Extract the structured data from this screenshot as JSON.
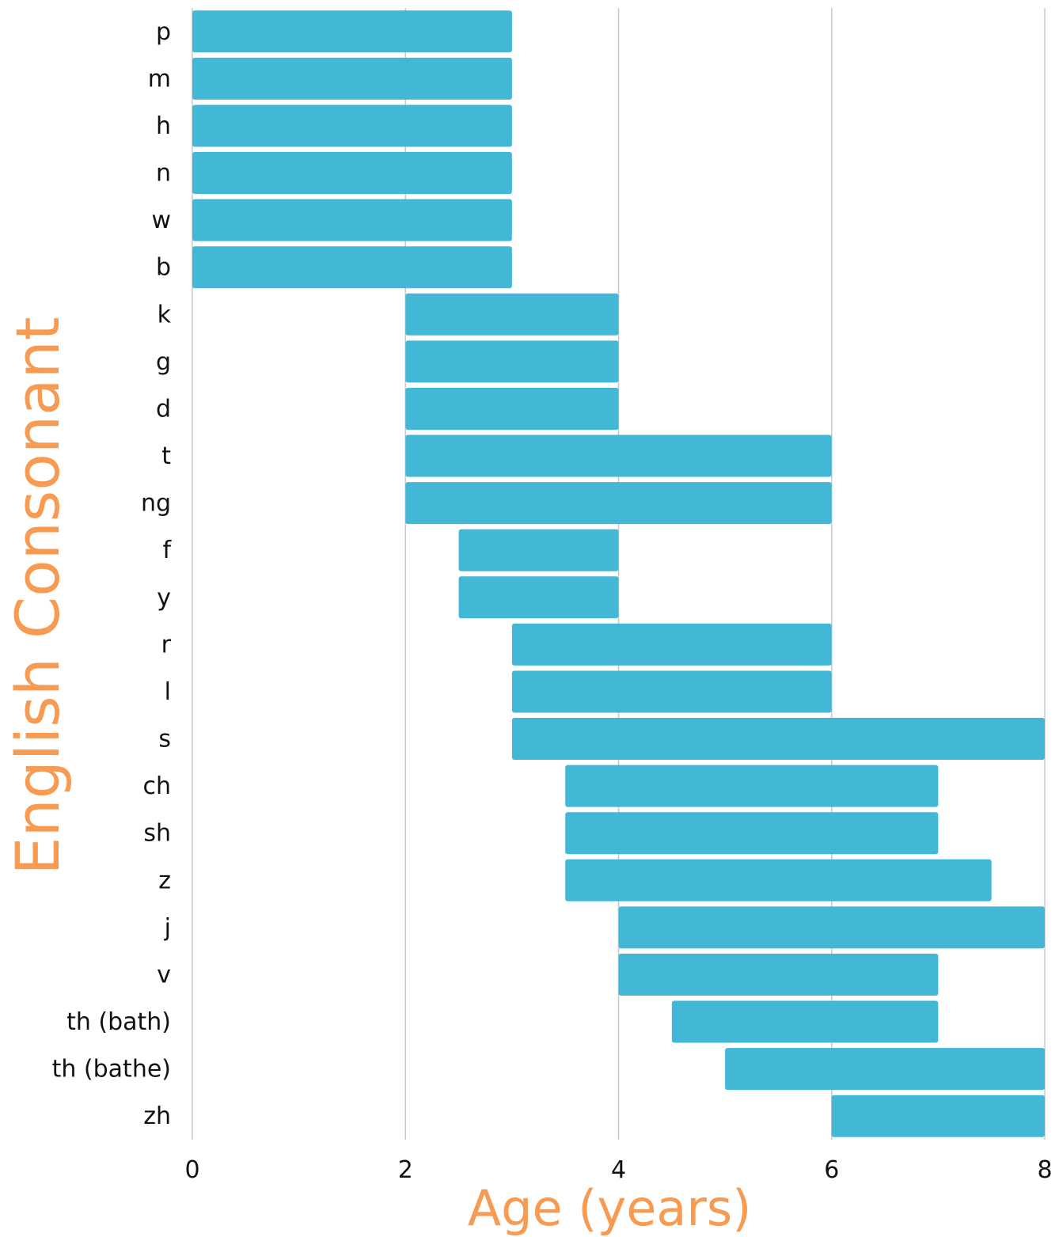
{
  "chart_data": {
    "type": "bar",
    "orientation": "horizontal",
    "xlabel": "Age (years)",
    "ylabel": "English Consonant",
    "xlim": [
      0,
      8
    ],
    "xticks": [
      0,
      2,
      4,
      6,
      8
    ],
    "grid": "vertical",
    "colors": {
      "bar": "#42b7d6",
      "axis_title": "#f79a52",
      "grid": "#c8c8c8",
      "text": "#111111"
    },
    "categories": [
      "p",
      "m",
      "h",
      "n",
      "w",
      "b",
      "k",
      "g",
      "d",
      "t",
      "ng",
      "f",
      "y",
      "r",
      "l",
      "s",
      "ch",
      "sh",
      "z",
      "j",
      "v",
      "th (bath)",
      "th (bathe)",
      "zh"
    ],
    "series": [
      {
        "start": [
          0,
          0,
          0,
          0,
          0,
          0,
          2,
          2,
          2,
          2,
          2,
          2.5,
          2.5,
          3,
          3,
          3,
          3.5,
          3.5,
          3.5,
          4,
          4,
          4.5,
          5,
          6
        ],
        "end": [
          3,
          3,
          3,
          3,
          3,
          3,
          4,
          4,
          4,
          6,
          6,
          4,
          4,
          6,
          6,
          8,
          7,
          7,
          7.5,
          8,
          7,
          7,
          8,
          8
        ]
      }
    ]
  }
}
